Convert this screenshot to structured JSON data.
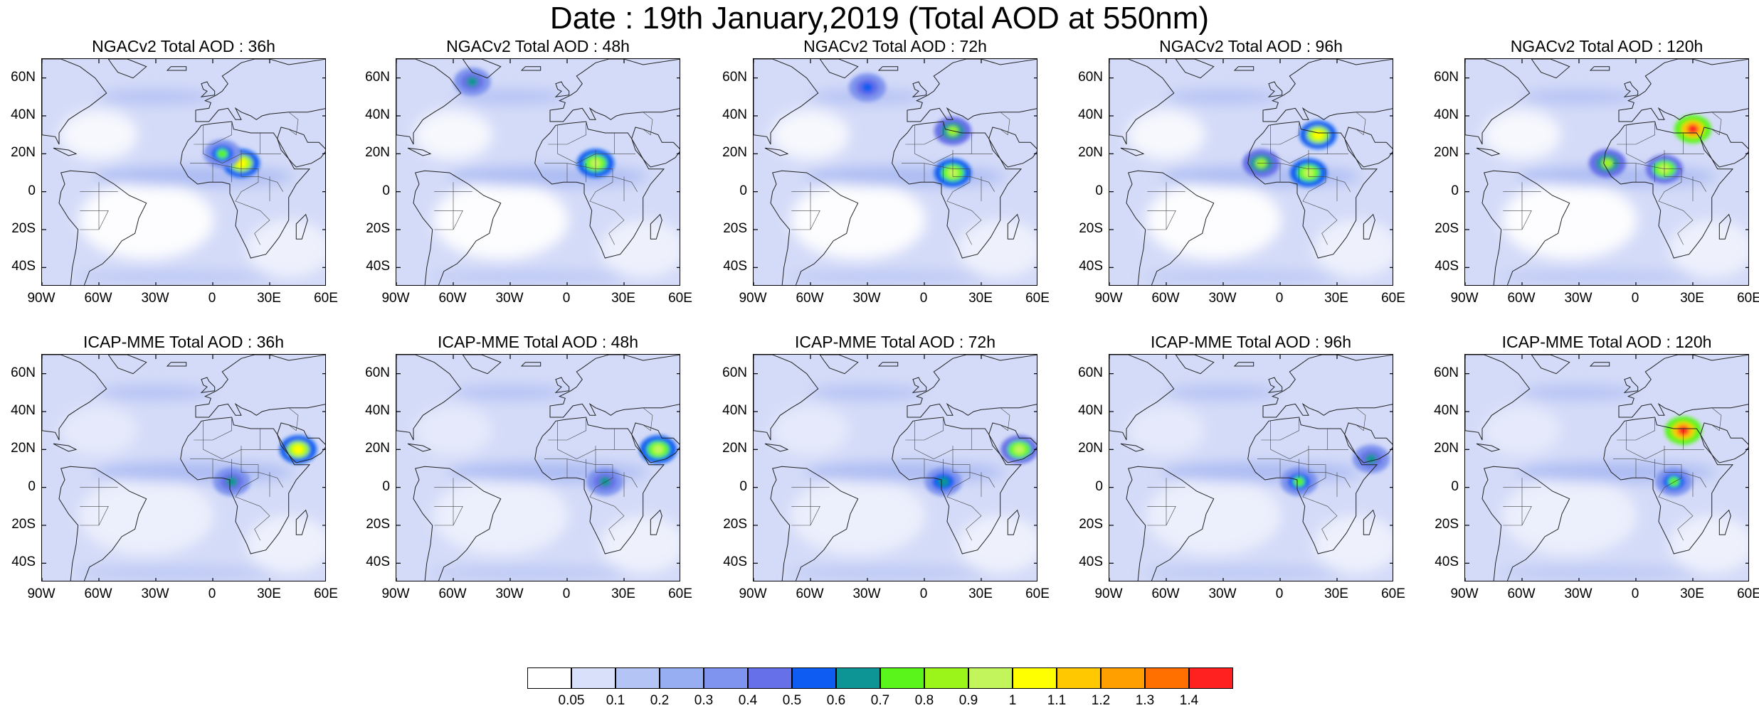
{
  "title": "Date : 19th January,2019 (Total AOD at 550nm)",
  "rows": [
    {
      "model": "NGACv2",
      "panels": [
        {
          "title": "NGACv2 Total AOD : 36h",
          "lead": "36h",
          "hotspots": [
            [
              15,
              15,
              1.0
            ],
            [
              5,
              20,
              0.7
            ]
          ]
        },
        {
          "title": "NGACv2 Total AOD : 48h",
          "lead": "48h",
          "hotspots": [
            [
              15,
              15,
              0.95
            ],
            [
              -50,
              58,
              0.6
            ]
          ]
        },
        {
          "title": "NGACv2 Total AOD : 72h",
          "lead": "72h",
          "hotspots": [
            [
              15,
              10,
              0.95
            ],
            [
              15,
              32,
              0.8
            ],
            [
              -30,
              55,
              0.55
            ]
          ]
        },
        {
          "title": "NGACv2 Total AOD : 96h",
          "lead": "96h",
          "hotspots": [
            [
              20,
              30,
              1.0
            ],
            [
              15,
              10,
              0.95
            ],
            [
              -10,
              15,
              0.8
            ]
          ]
        },
        {
          "title": "NGACv2 Total AOD : 120h",
          "lead": "120h",
          "hotspots": [
            [
              30,
              33,
              1.4
            ],
            [
              15,
              12,
              0.9
            ],
            [
              -15,
              15,
              0.8
            ]
          ]
        }
      ]
    },
    {
      "model": "ICAP-MME",
      "panels": [
        {
          "title": "ICAP-MME Total AOD : 36h",
          "lead": "36h",
          "hotspots": [
            [
              45,
              20,
              1.0
            ],
            [
              10,
              3,
              0.6
            ]
          ]
        },
        {
          "title": "ICAP-MME Total AOD : 48h",
          "lead": "48h",
          "hotspots": [
            [
              48,
              20,
              0.95
            ],
            [
              20,
              3,
              0.6
            ]
          ]
        },
        {
          "title": "ICAP-MME Total AOD : 72h",
          "lead": "72h",
          "hotspots": [
            [
              50,
              20,
              0.9
            ],
            [
              10,
              3,
              0.65
            ]
          ]
        },
        {
          "title": "ICAP-MME Total AOD : 96h",
          "lead": "96h",
          "hotspots": [
            [
              48,
              15,
              0.6
            ],
            [
              10,
              3,
              0.7
            ]
          ]
        },
        {
          "title": "ICAP-MME Total AOD : 120h",
          "lead": "120h",
          "hotspots": [
            [
              25,
              30,
              1.4
            ],
            [
              20,
              3,
              0.7
            ]
          ]
        }
      ]
    }
  ],
  "lat_ticks": [
    "60N",
    "40N",
    "20N",
    "0",
    "20S",
    "40S"
  ],
  "lat_values": [
    60,
    40,
    20,
    0,
    -20,
    -40
  ],
  "lon_ticks": [
    "90W",
    "60W",
    "30W",
    "0",
    "30E",
    "60E"
  ],
  "lon_values": [
    -90,
    -60,
    -30,
    0,
    30,
    60
  ],
  "extent": {
    "lon": [
      -90,
      60
    ],
    "lat": [
      -50,
      70
    ]
  },
  "colorbar": {
    "levels": [
      "0.05",
      "0.1",
      "0.2",
      "0.3",
      "0.4",
      "0.5",
      "0.6",
      "0.7",
      "0.8",
      "0.9",
      "1",
      "1.1",
      "1.2",
      "1.3",
      "1.4"
    ],
    "colors": [
      "#ffffff",
      "#d8e0fa",
      "#b4c4f4",
      "#98aef2",
      "#7f94ee",
      "#6670e8",
      "#0f5cf2",
      "#0d9494",
      "#5af51a",
      "#9bf51a",
      "#c2f55c",
      "#ffff00",
      "#ffc800",
      "#ffa000",
      "#ff7000",
      "#ff2020"
    ]
  },
  "colors": {
    "ocean_bg": "#d4dbf8",
    "clean": "#ffffff",
    "band": "#a6b7f2",
    "coast": "#222222"
  }
}
